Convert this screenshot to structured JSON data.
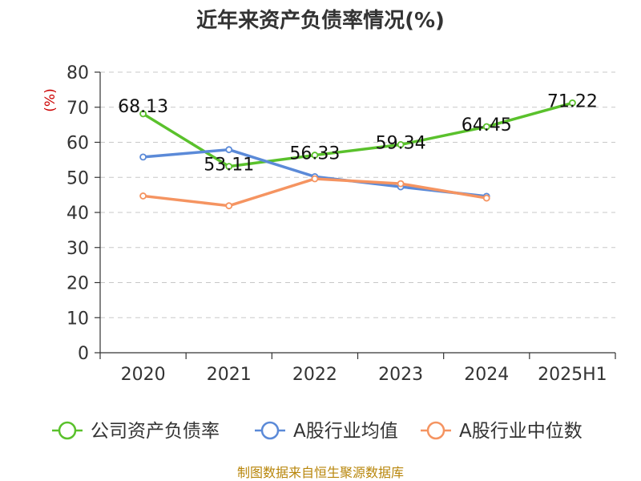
{
  "chart_data": {
    "type": "line",
    "title": "近年来资产负债率情况(%)",
    "ylabel": "(%)",
    "xlabel": "",
    "ylim": [
      0,
      80
    ],
    "yticks": [
      "0",
      "10",
      "20",
      "30",
      "40",
      "50",
      "60",
      "70",
      "80"
    ],
    "categories": [
      "2020",
      "2021",
      "2022",
      "2023",
      "2024",
      "2025H1"
    ],
    "grid": true,
    "legend_position": "bottom",
    "series": [
      {
        "name": "公司资产负债率",
        "color": "#5ac12c",
        "values": [
          68.13,
          53.11,
          56.33,
          59.34,
          64.45,
          71.22
        ],
        "labels": [
          "68.13",
          "53.11",
          "56.33",
          "59.34",
          "64.45",
          "71.22"
        ]
      },
      {
        "name": "A股行业均值",
        "color": "#5b8ad8",
        "values": [
          55.8,
          57.9,
          50.2,
          47.3,
          44.6,
          null
        ]
      },
      {
        "name": "A股行业中位数",
        "color": "#f59461",
        "values": [
          44.7,
          41.9,
          49.6,
          48.2,
          44.1,
          null
        ]
      }
    ]
  },
  "source_text": "制图数据来自恒生聚源数据库"
}
